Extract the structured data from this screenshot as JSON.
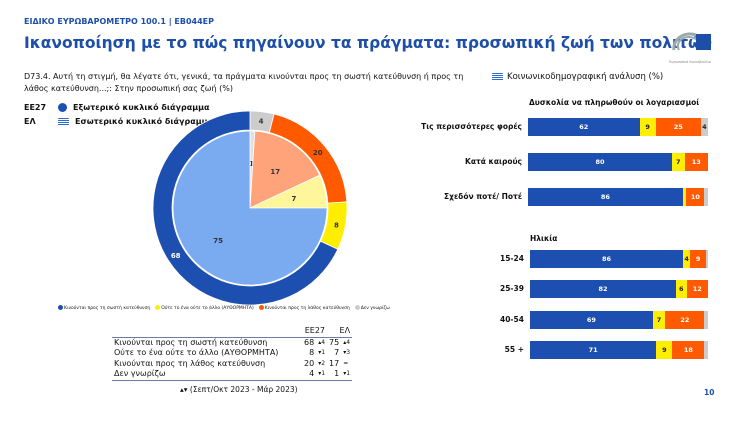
{
  "header": {
    "kicker": "ΕΙΔΙΚΟ ΕΥΡΩΒΑΡΟΜΕΤΡΟ 100.1 | EB044EP",
    "title": "Ικανοποίηση με το πώς πηγαίνουν τα πράγματα: προσωπική ζωή των πολιτών",
    "logo_text": "Ευρωπαϊκό Κοινοβούλιο"
  },
  "question": "D73.4. Αυτή τη στιγμή, θα λέγατε ότι, γενικά, τα πράγματα κινούνται προς τη σωστή κατεύθυνση ή προς τη λάθος κατεύθυνση...;: Στην προσωπική σας ζωή (%)",
  "legend": {
    "eu_code": "EE27",
    "eu_label": "Εξωτερικό κυκλικό διάγραμμα",
    "gr_code": "ΕΛ",
    "gr_label": "Εσωτερικό κυκλικό διάγραμμα"
  },
  "categories": [
    "Κινούνται προς τη σωστή κατεύθυνση",
    "Ούτε το ένα ούτε το άλλο (ΑΥΘΟΡΜΗΤΑ)",
    "Κινούνται προς τη λάθος κατεύθυνση",
    "Δεν γνωρίζω"
  ],
  "colors": {
    "right": "#1d4fb0",
    "neither": "#ffee00",
    "wrong": "#ff5a00",
    "dk": "#cccccc",
    "right_light": "#7aaaf0",
    "neither_light": "#fff59a",
    "wrong_light": "#ffa47a",
    "dk_light": "#e0e0e0",
    "accent": "#1d4fa8"
  },
  "table": {
    "headers": [
      "EE27",
      "ΕΛ"
    ],
    "rows": [
      {
        "label": "Κινούνται προς τη σωστή κατεύθυνση",
        "eu": "68",
        "eu_ch": "▴4",
        "gr": "75",
        "gr_ch": "▴4"
      },
      {
        "label": "Ούτε το ένα ούτε το άλλο (ΑΥΘΟΡΜΗΤΑ)",
        "eu": "8",
        "eu_ch": "▾1",
        "gr": "7",
        "gr_ch": "▾3"
      },
      {
        "label": "Κινούνται προς τη λάθος κατεύθυνση",
        "eu": "20",
        "eu_ch": "▾2",
        "gr": "17",
        "gr_ch": "="
      },
      {
        "label": "Δεν γνωρίζω",
        "eu": "4",
        "eu_ch": "▾1",
        "gr": "1",
        "gr_ch": "▾1"
      }
    ],
    "note": "▴▾ (Σεπτ/Οκτ 2023 - Μάρ 2023)"
  },
  "socio_title": "Κοινωνικοδημογραφική ανάλυση (%)",
  "page_number": "10",
  "chart_data": [
    {
      "type": "pie",
      "name": "EE27",
      "ring": "outer",
      "values": [
        68,
        8,
        20,
        4
      ]
    },
    {
      "type": "pie",
      "name": "ΕΛ",
      "ring": "inner",
      "values": [
        75,
        7,
        17,
        1
      ]
    },
    {
      "type": "bar",
      "orientation": "horizontal",
      "stacked": true,
      "title": "Δυσκολία να πληρωθούν οι λογαριασμοί",
      "categories": [
        "Τις περισσότερες φορές",
        "Κατά καιρούς",
        "Σχεδόν ποτέ/ Ποτέ"
      ],
      "values": [
        [
          62,
          9,
          25,
          4
        ],
        [
          80,
          7,
          13,
          0
        ],
        [
          86,
          2,
          10,
          2
        ]
      ],
      "labels": [
        [
          "62",
          "9",
          "25",
          "4"
        ],
        [
          "80",
          "7",
          "13",
          ""
        ],
        [
          "86",
          "",
          "10",
          ""
        ]
      ]
    },
    {
      "type": "bar",
      "orientation": "horizontal",
      "stacked": true,
      "title": "Ηλικία",
      "categories": [
        "15-24",
        "25-39",
        "40-54",
        "55 +"
      ],
      "values": [
        [
          86,
          4,
          9,
          1
        ],
        [
          82,
          6,
          12,
          0
        ],
        [
          69,
          7,
          22,
          2
        ],
        [
          71,
          9,
          18,
          2
        ]
      ],
      "labels": [
        [
          "86",
          "4",
          "9",
          ""
        ],
        [
          "82",
          "6",
          "12",
          ""
        ],
        [
          "69",
          "7",
          "22",
          ""
        ],
        [
          "71",
          "9",
          "18",
          ""
        ]
      ]
    }
  ]
}
